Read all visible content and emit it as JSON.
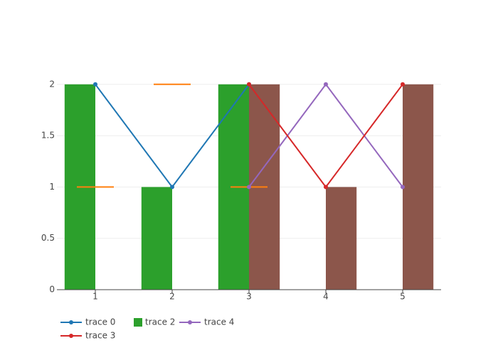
{
  "chart_data": {
    "type": "combo",
    "xlim": [
      0.5,
      5.5
    ],
    "xticks": [
      1,
      2,
      3,
      4,
      5
    ],
    "ylim": [
      0,
      2.13
    ],
    "yticks": [
      0,
      0.5,
      1,
      1.5,
      2
    ],
    "grid": true,
    "series": [
      {
        "name": "trace 0",
        "type": "line",
        "color": "#1f77b4",
        "x": [
          1,
          2,
          3
        ],
        "values": [
          2,
          1,
          2
        ]
      },
      {
        "type": "marker",
        "color": "#ff7f0e",
        "x": [
          1,
          2,
          3
        ],
        "values": [
          1,
          2,
          1
        ]
      },
      {
        "name": "trace 2",
        "type": "bar",
        "color": "#2ca02c",
        "x": [
          1,
          2,
          3
        ],
        "values": [
          2,
          1,
          2
        ]
      },
      {
        "name": "trace 4",
        "type": "line",
        "color": "#9467bd",
        "x": [
          3,
          4,
          5
        ],
        "values": [
          1,
          2,
          1
        ]
      },
      {
        "name": "trace 3",
        "type": "line",
        "color": "#d62728",
        "x": [
          3,
          4,
          5
        ],
        "values": [
          2,
          1,
          2
        ]
      },
      {
        "type": "bar",
        "color": "#8c564b",
        "x": [
          3,
          4,
          5
        ],
        "values": [
          2,
          1,
          2
        ]
      }
    ]
  }
}
